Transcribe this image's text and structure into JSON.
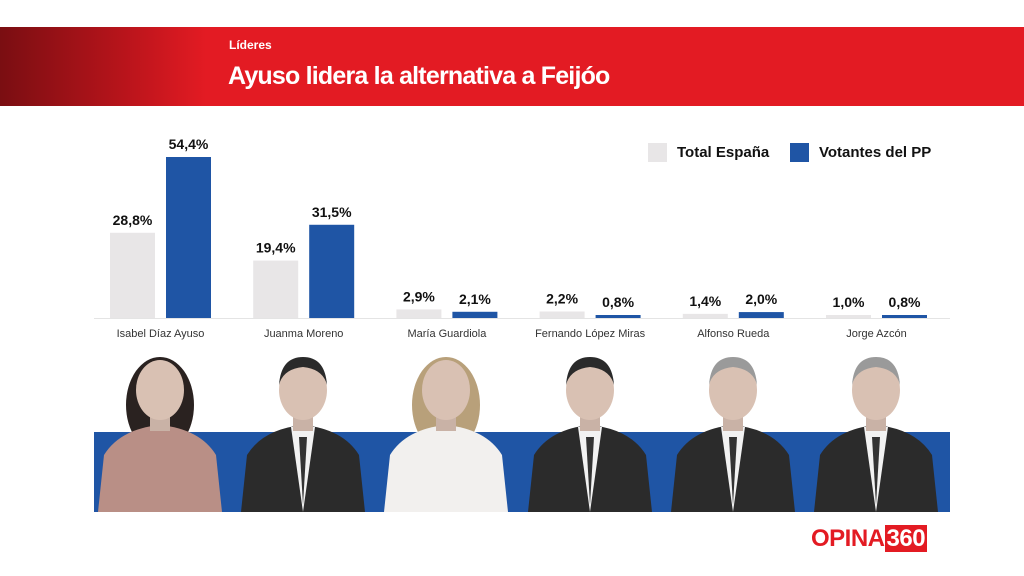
{
  "header": {
    "kicker": "Líderes",
    "title": "Ayuso lidera la alternativa a Feijóo"
  },
  "chart_data": {
    "type": "bar",
    "title": "Ayuso lidera la alternativa a Feijóo",
    "categories": [
      "Isabel Díaz Ayuso",
      "Juanma Moreno",
      "María Guardiola",
      "Fernando López Miras",
      "Alfonso Rueda",
      "Jorge Azcón"
    ],
    "series": [
      {
        "name": "Total España",
        "color": "#e8e6e7",
        "values": [
          28.8,
          19.4,
          2.9,
          2.2,
          1.4,
          1.0
        ],
        "labels": [
          "28,8%",
          "19,4%",
          "2,9%",
          "2,2%",
          "1,4%",
          "1,0%"
        ]
      },
      {
        "name": "Votantes del PP",
        "color": "#1f55a5",
        "values": [
          54.4,
          31.5,
          2.1,
          0.8,
          2.0,
          0.8
        ],
        "labels": [
          "54,4%",
          "31,5%",
          "2,1%",
          "0,8%",
          "2,0%",
          "0,8%"
        ]
      }
    ],
    "ylim": [
      0,
      60
    ],
    "legend": "top-right",
    "grid": false
  },
  "logo": {
    "part1": "OPINA",
    "part2": "360"
  }
}
